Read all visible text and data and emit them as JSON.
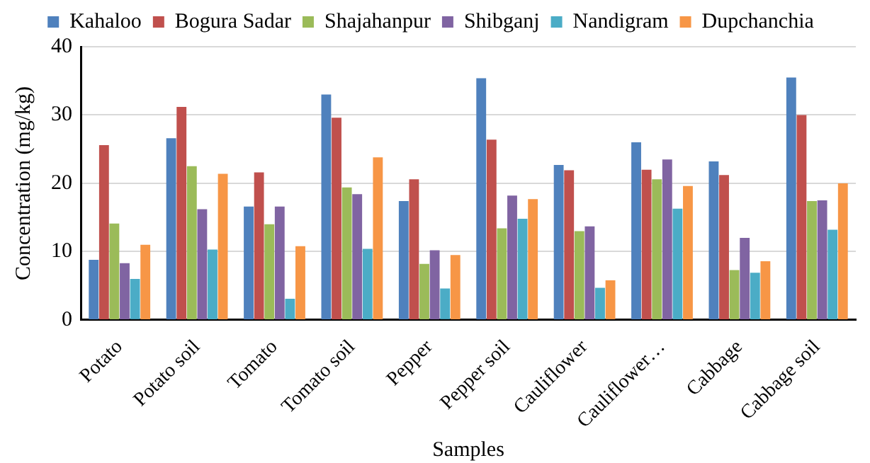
{
  "chart_data": {
    "type": "bar",
    "xlabel": "Samples",
    "ylabel": "Concentration (mg/kg)",
    "categories": [
      "Potato",
      "Potato soil",
      "Tomato",
      "Tomato soil",
      "Pepper",
      "Pepper soil",
      "Cauliflower",
      "Cauliflower…",
      "Cabbage",
      "Cabbage soil"
    ],
    "series": [
      {
        "name": "Kahaloo",
        "color": "#4f81bd",
        "values": [
          8.8,
          26.6,
          16.6,
          33.0,
          17.4,
          35.4,
          22.7,
          26.0,
          23.2,
          35.5
        ]
      },
      {
        "name": "Bogura Sadar",
        "color": "#c0504d",
        "values": [
          25.6,
          31.2,
          21.6,
          29.6,
          20.6,
          26.4,
          21.9,
          22.0,
          21.2,
          30.0
        ]
      },
      {
        "name": "Shajahanpur",
        "color": "#9bbb59",
        "values": [
          14.1,
          22.5,
          14.0,
          19.4,
          8.2,
          13.4,
          13.0,
          20.6,
          7.3,
          17.4
        ]
      },
      {
        "name": "Shibganj",
        "color": "#8064a2",
        "values": [
          8.3,
          16.2,
          16.6,
          18.4,
          10.2,
          18.2,
          13.7,
          23.5,
          12.0,
          17.5
        ]
      },
      {
        "name": "Nandigram",
        "color": "#4bacc6",
        "values": [
          6.0,
          10.3,
          3.1,
          10.4,
          4.6,
          14.8,
          4.7,
          16.3,
          6.9,
          13.2
        ]
      },
      {
        "name": "Dupchanchia",
        "color": "#f79646",
        "values": [
          11.0,
          21.4,
          10.8,
          23.8,
          9.5,
          17.7,
          5.8,
          19.6,
          8.6,
          20.0
        ]
      }
    ],
    "ylim": [
      0,
      40
    ],
    "yticks": [
      0,
      10,
      20,
      30,
      40
    ],
    "grid": "y",
    "legend": "top"
  }
}
